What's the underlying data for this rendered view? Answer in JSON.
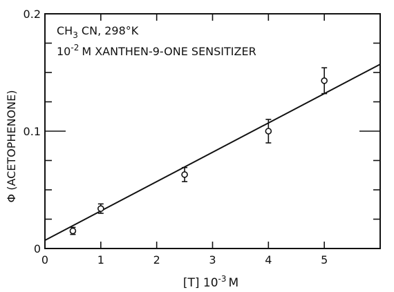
{
  "chart_data": {
    "type": "scatter",
    "annotation_line1": "CH3 CN, 298°K",
    "annotation_line1_parts": {
      "pre": "CH",
      "sub": "3",
      "post": " CN, 298°K"
    },
    "annotation_line2": "10-2 M XANTHEN-9-ONE SENSITIZER",
    "annotation_line2_parts": {
      "base": "10",
      "sup": "-2",
      "post": "M XANTHEN-9-ONE SENSITIZER"
    },
    "xlabel": "[T] 10-3 M",
    "xlabel_parts": {
      "pre": "[T] 10",
      "sup": "-3",
      "post": "M"
    },
    "ylabel": "Φ (ACETOPHENONE)",
    "xlim": [
      0,
      6
    ],
    "ylim": [
      0,
      0.2
    ],
    "x_ticks": [
      0,
      1,
      2,
      3,
      4,
      5
    ],
    "x_tick_labels": [
      "0",
      "1",
      "2",
      "3",
      "4",
      "5"
    ],
    "y_ticks_labeled": [
      0,
      0.1,
      0.2
    ],
    "y_tick_labels": [
      "0",
      "0.1",
      "0.2"
    ],
    "y_minor_step": 0.025,
    "grid": false,
    "legend": "none",
    "points": [
      {
        "x": 0.5,
        "y": 0.015,
        "err": 0.003
      },
      {
        "x": 1.0,
        "y": 0.034,
        "err": 0.004
      },
      {
        "x": 2.5,
        "y": 0.063,
        "err": 0.006
      },
      {
        "x": 4.0,
        "y": 0.1,
        "err": 0.01
      },
      {
        "x": 5.0,
        "y": 0.143,
        "err": 0.011
      }
    ],
    "fit_line": {
      "x": [
        0,
        6
      ],
      "y": [
        0.007,
        0.157
      ]
    }
  }
}
